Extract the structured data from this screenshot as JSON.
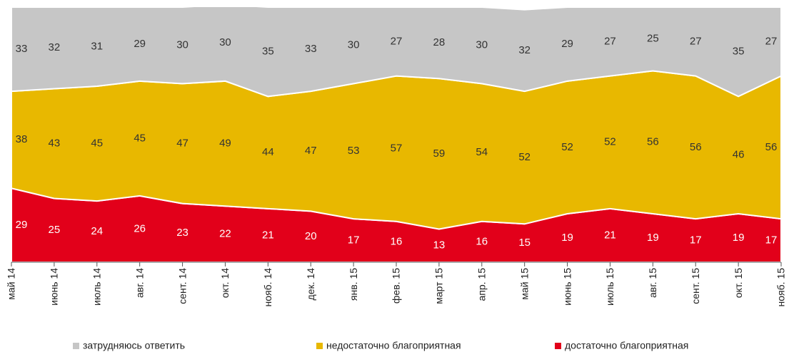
{
  "chart_data": {
    "type": "stacked_area",
    "categories": [
      "май 14",
      "июнь 14",
      "июль 14",
      "авг. 14",
      "сент. 14",
      "окт. 14",
      "нояб. 14",
      "дек. 14",
      "янв. 15",
      "фев. 15",
      "март 15",
      "апр. 15",
      "май 15",
      "июнь 15",
      "июль 15",
      "авг. 15",
      "сент. 15",
      "окт. 15",
      "нояб. 15"
    ],
    "ylim": [
      0,
      100
    ],
    "series": [
      {
        "name": "достаточно благоприятная",
        "color": "#e2001a",
        "values": [
          29,
          25,
          24,
          26,
          23,
          22,
          21,
          20,
          17,
          16,
          13,
          16,
          15,
          19,
          21,
          19,
          17,
          19,
          17
        ]
      },
      {
        "name": "недостаточно благоприятная",
        "color": "#e8b800",
        "values": [
          38,
          43,
          45,
          45,
          47,
          49,
          44,
          47,
          53,
          57,
          59,
          54,
          52,
          52,
          52,
          56,
          56,
          46,
          56
        ]
      },
      {
        "name": "затрудняюсь ответить",
        "color": "#c6c6c6",
        "values": [
          33,
          32,
          31,
          29,
          30,
          30,
          35,
          33,
          30,
          27,
          28,
          30,
          32,
          29,
          27,
          25,
          27,
          35,
          27
        ]
      }
    ]
  }
}
